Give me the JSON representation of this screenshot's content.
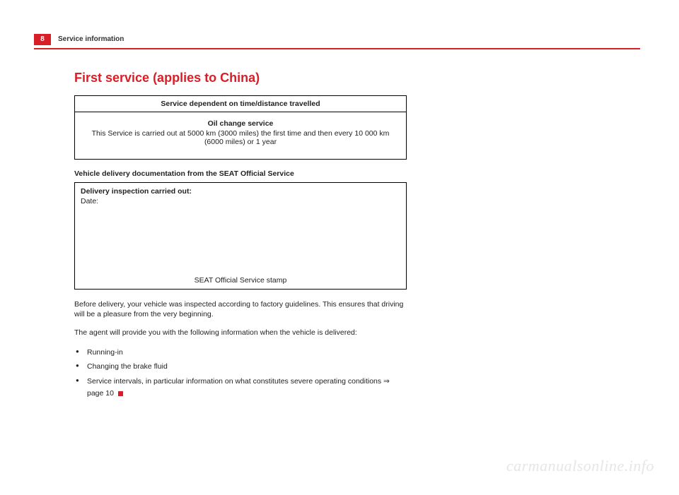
{
  "header": {
    "page_number": "8",
    "section": "Service information"
  },
  "heading": "First service (applies to China)",
  "table1": {
    "header": "Service dependent on time/distance travelled",
    "cell_title": "Oil change service",
    "cell_body": "This Service is carried out at 5000 km (3000 miles) the first time and then every 10 000 km (6000 miles) or 1 year"
  },
  "subhead": "Vehicle delivery documentation from the SEAT Official Service",
  "table2": {
    "line1": "Delivery inspection carried out:",
    "line2": "Date:",
    "stamp": "SEAT Official Service stamp"
  },
  "para1": "Before delivery, your vehicle was inspected according to factory guidelines. This ensures that driving will be a pleasure from the very beginning.",
  "para2": "The agent will provide you with the following information when the vehicle is delivered:",
  "bullets": {
    "b1": "Running-in",
    "b2": "Changing the brake fluid",
    "b3_pre": "Service intervals, in particular information on what constitutes severe operating conditions ",
    "b3_arrow": "⇒",
    "b3_post": " page 10"
  },
  "watermark": "carmanualsonline.info",
  "colors": {
    "accent": "#d81e26",
    "text": "#222222",
    "watermark": "#e6e6e6",
    "bg": "#ffffff",
    "border": "#000000"
  }
}
